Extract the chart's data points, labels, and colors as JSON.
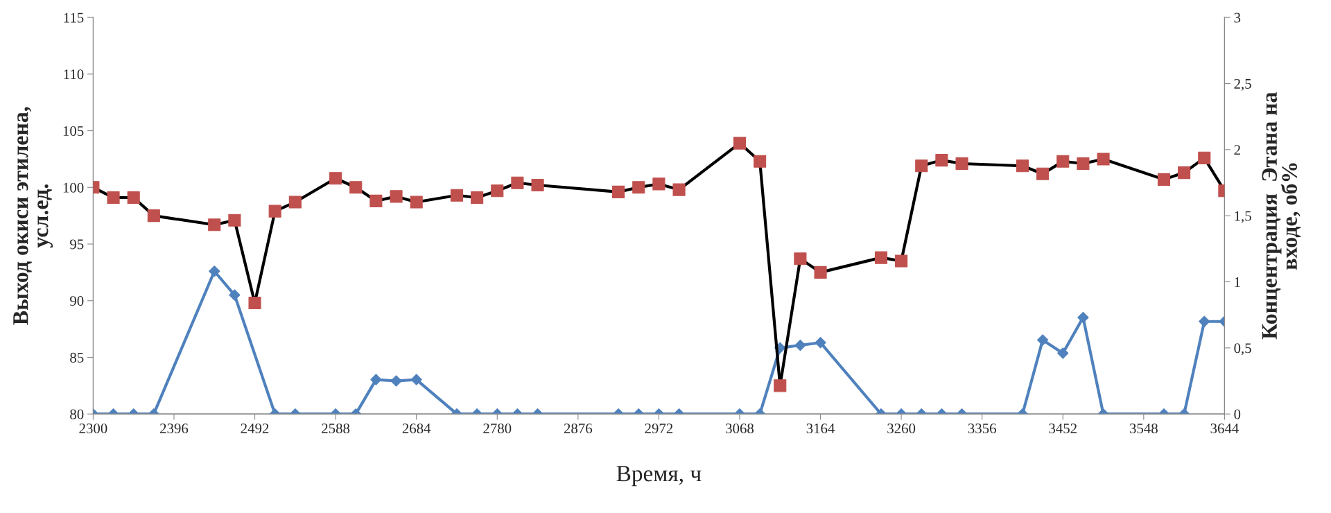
{
  "chart_data": {
    "type": "line",
    "xlabel": "Время, ч",
    "ylabel": "Выход окиси этилена,\nусл.ед.",
    "y2label": "Концентрация  Этана на\nвходе, об%",
    "x": [
      2300,
      2324,
      2348,
      2372,
      2444,
      2468,
      2492,
      2516,
      2540,
      2588,
      2612,
      2636,
      2660,
      2684,
      2732,
      2756,
      2780,
      2804,
      2828,
      2924,
      2948,
      2972,
      2996,
      3068,
      3092,
      3116,
      3140,
      3164,
      3236,
      3260,
      3284,
      3308,
      3332,
      3404,
      3428,
      3452,
      3476,
      3500,
      3572,
      3596,
      3620,
      3644
    ],
    "series": [
      {
        "color": "#000000",
        "colors": [
          "#c0504d",
          "#c0504d",
          "#c0504d",
          "#c0504d",
          "#c0504d",
          "#c0504d",
          "#c0504d",
          "#c0504d",
          "#c0504d",
          "#c0504d",
          "#c0504d",
          "#c0504d",
          "#c0504d",
          "#c0504d",
          "#c0504d",
          "#c0504d",
          "#c0504d",
          "#c0504d",
          "#c0504d",
          "#c0504d",
          "#c0504d",
          "#c0504d",
          "#c0504d",
          "#c0504d",
          "#c0504d",
          "#c0504d",
          "#c0504d",
          "#c0504d",
          "#c0504d",
          "#c0504d",
          "#c0504d",
          "#c0504d",
          "#c0504d",
          "#c0504d",
          "#c0504d",
          "#c0504d",
          "#c0504d",
          "#c0504d",
          "#c0504d",
          "#c0504d",
          "#c0504d",
          "#c0504d"
        ],
        "marker": "square",
        "values": [
          100.0,
          99.1,
          99.1,
          97.5,
          96.7,
          97.1,
          89.8,
          97.9,
          98.7,
          100.8,
          100.0,
          98.8,
          99.2,
          98.7,
          99.3,
          99.1,
          99.7,
          100.4,
          100.2,
          99.6,
          100.0,
          100.3,
          99.8,
          103.9,
          102.3,
          82.5,
          93.7,
          92.5,
          93.8,
          93.5,
          101.9,
          102.4,
          102.1,
          101.9,
          101.2,
          102.3,
          102.1,
          102.5,
          100.7,
          101.3,
          102.6,
          99.7
        ]
      },
      {
        "color": "#4f81bd",
        "marker": "diamond",
        "axis": "y2",
        "values": [
          0,
          0,
          0,
          0,
          1.08,
          0.9,
          null,
          0,
          0,
          0,
          0,
          0.26,
          0.25,
          0.26,
          0,
          0,
          0,
          0,
          0,
          0,
          0,
          0,
          0,
          0,
          0,
          0.5,
          0.52,
          0.54,
          0,
          0,
          0,
          0,
          0,
          0,
          0.56,
          0.46,
          0.73,
          0,
          0,
          0,
          0.7,
          0.7
        ]
      }
    ],
    "xlim": [
      2300,
      3644
    ],
    "xticks": [
      2300,
      2396,
      2492,
      2588,
      2684,
      2780,
      2876,
      2972,
      3068,
      3164,
      3260,
      3356,
      3452,
      3548,
      3644
    ],
    "ylim": [
      80,
      115
    ],
    "yticks": [
      80,
      85,
      90,
      95,
      100,
      105,
      110,
      115
    ],
    "y2lim": [
      0,
      3
    ],
    "y2ticks": [
      0,
      {
        "value": 0.5,
        "label": "0,5"
      },
      1,
      {
        "value": 1.5,
        "label": "1,5"
      },
      2,
      {
        "value": 2.5,
        "label": "2,5"
      },
      3
    ],
    "grid": false,
    "line_style": "solid"
  }
}
